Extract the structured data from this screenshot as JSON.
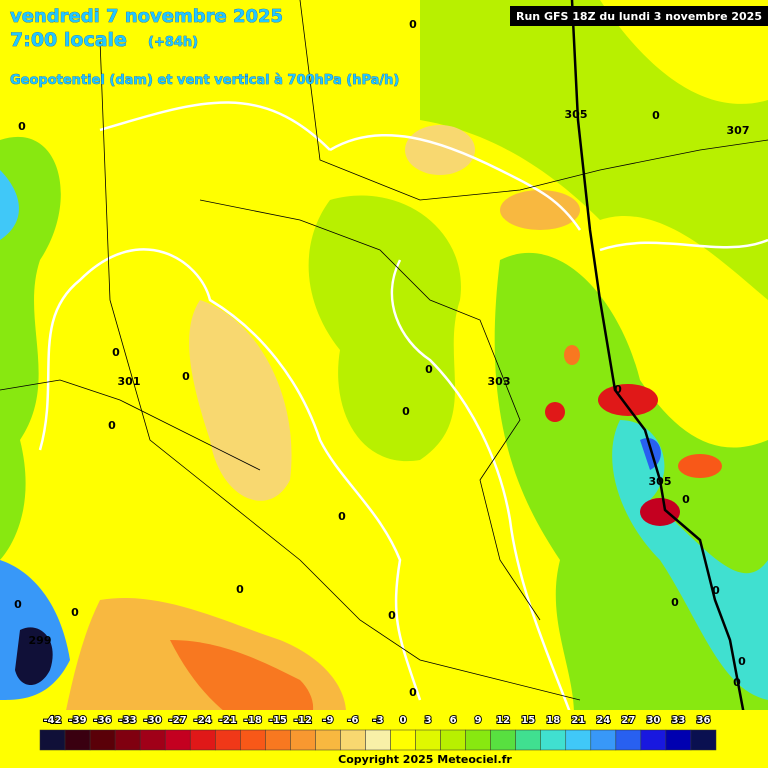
{
  "header": {
    "date": "vendredi 7 novembre 2025",
    "time": "7:00 locale",
    "lead": "(+84h)",
    "subtitle": "Geopotentiel (dam) et vent vertical à 700hPa (hPa/h)",
    "run": "Run GFS 18Z du lundi 3 novembre 2025"
  },
  "map": {
    "contour_labels": [
      "305",
      "307",
      "301",
      "303",
      "305",
      "299"
    ],
    "zero_labels": [
      "0",
      "0",
      "0",
      "0",
      "0",
      "0",
      "0",
      "0",
      "0",
      "0",
      "0",
      "0",
      "0",
      "0",
      "0",
      "0",
      "0",
      "0",
      "0",
      "0",
      "0",
      "0"
    ]
  },
  "colorbar": {
    "labels": [
      -42,
      -39,
      -36,
      -33,
      -30,
      -27,
      -24,
      -21,
      -18,
      -15,
      -12,
      -9,
      -6,
      -3,
      0,
      3,
      6,
      9,
      12,
      15,
      18,
      21,
      24,
      27,
      30,
      33,
      36
    ],
    "colors": [
      "#101038",
      "#3a0010",
      "#5a0008",
      "#800010",
      "#a00018",
      "#c40020",
      "#e01818",
      "#f03818",
      "#f85818",
      "#f87820",
      "#f89830",
      "#f8b840",
      "#f8d870",
      "#f8f0a8",
      "#ffff00",
      "#e0f800",
      "#b8f000",
      "#88e810",
      "#58e040",
      "#40e090",
      "#40e0d0",
      "#40c8f8",
      "#3898f8",
      "#2860f0",
      "#1818e0",
      "#0000b0",
      "#0a1050"
    ]
  },
  "footer": {
    "copyright": "Copyright 2025 Meteociel.fr"
  }
}
